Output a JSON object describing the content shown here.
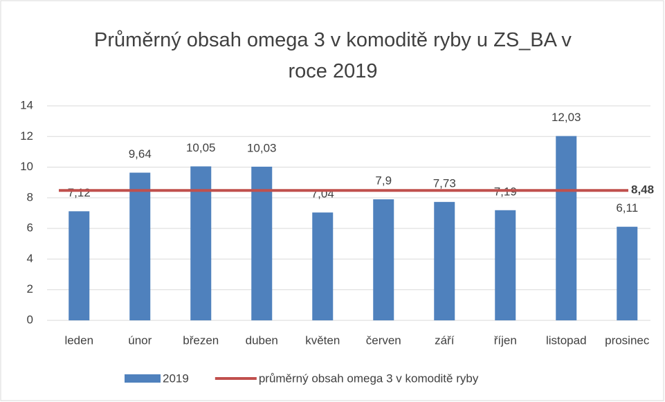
{
  "chart_data": {
    "type": "bar",
    "title": "Průměrný obsah omega 3 v komoditě ryby u ZS_BA v roce 2019",
    "categories": [
      "leden",
      "únor",
      "březen",
      "duben",
      "květen",
      "červen",
      "září",
      "říjen",
      "listopad",
      "prosinec"
    ],
    "series": [
      {
        "name": "2019",
        "type": "bar",
        "color": "#4f81bd",
        "values": [
          7.12,
          9.64,
          10.05,
          10.03,
          7.04,
          7.9,
          7.73,
          7.19,
          12.03,
          6.11
        ],
        "value_labels": [
          "7,12",
          "9,64",
          "10,05",
          "10,03",
          "7,04",
          "7,9",
          "7,73",
          "7,19",
          "12,03",
          "6,11"
        ]
      },
      {
        "name": "průměrný obsah omega 3 v komoditě ryby",
        "type": "line",
        "color": "#c0504d",
        "value": 8.48,
        "value_label": "8,48"
      }
    ],
    "ylim": [
      0,
      14
    ],
    "yticks": [
      0,
      2,
      4,
      6,
      8,
      10,
      12,
      14
    ],
    "grid": true,
    "legend": "bottom"
  }
}
